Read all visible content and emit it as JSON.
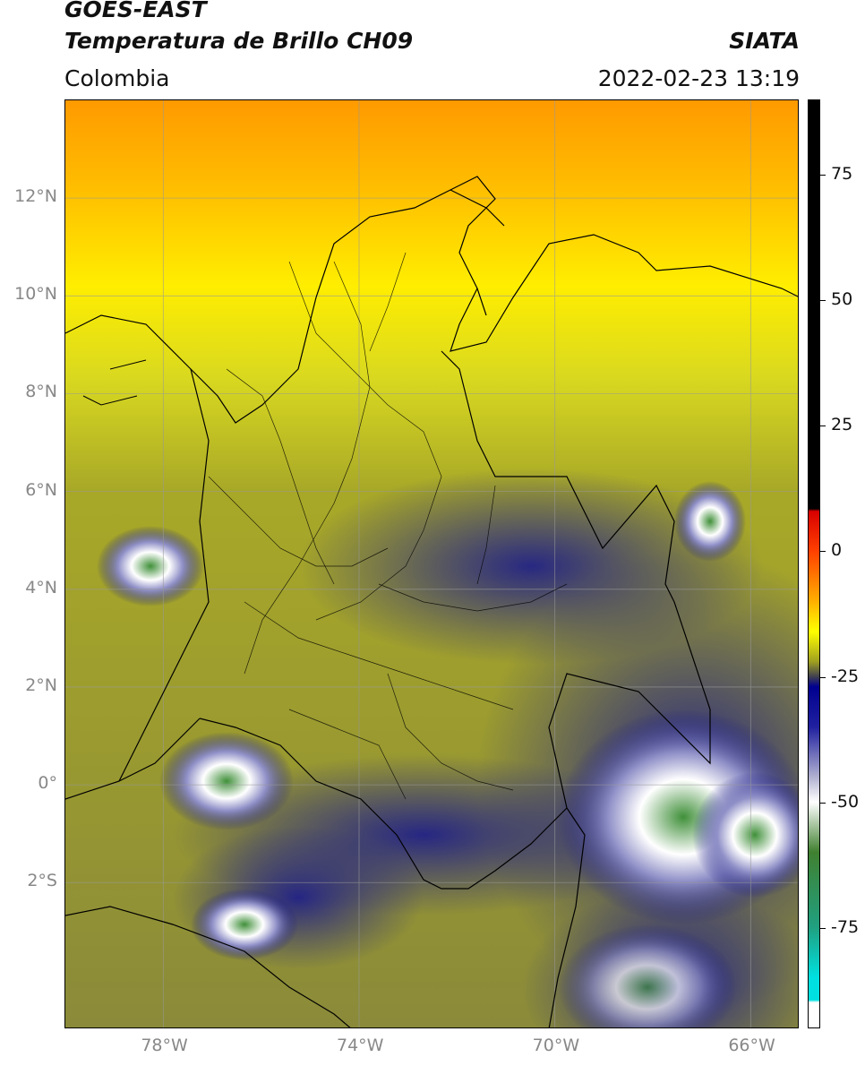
{
  "header": {
    "satellite": "GOES-EAST",
    "product": "Temperatura de Brillo CH09",
    "region": "Colombia",
    "agency": "SIATA",
    "timestamp": "2022-02-23 13:19"
  },
  "map": {
    "lon_range": [
      -80,
      -65
    ],
    "lat_range": [
      -5,
      14
    ],
    "lat_ticks": [
      {
        "value": 12,
        "label": "12°N"
      },
      {
        "value": 10,
        "label": "10°N"
      },
      {
        "value": 8,
        "label": "8°N"
      },
      {
        "value": 6,
        "label": "6°N"
      },
      {
        "value": 4,
        "label": "4°N"
      },
      {
        "value": 2,
        "label": "2°N"
      },
      {
        "value": 0,
        "label": "0°"
      },
      {
        "value": -2,
        "label": "2°S"
      }
    ],
    "lon_ticks": [
      {
        "value": -78,
        "label": "78°W"
      },
      {
        "value": -74,
        "label": "74°W"
      },
      {
        "value": -70,
        "label": "70°W"
      },
      {
        "value": -66,
        "label": "66°W"
      }
    ],
    "gridlines": true
  },
  "colorbar": {
    "range": [
      -95,
      90
    ],
    "ticks": [
      {
        "value": 75,
        "label": "75"
      },
      {
        "value": 50,
        "label": "50"
      },
      {
        "value": 25,
        "label": "25"
      },
      {
        "value": 0,
        "label": "0"
      },
      {
        "value": -25,
        "label": "-25"
      },
      {
        "value": -50,
        "label": "-50"
      },
      {
        "value": -75,
        "label": "-75"
      }
    ],
    "stops": [
      {
        "value": 90,
        "color": "#000000"
      },
      {
        "value": 8.5,
        "color": "#000000"
      },
      {
        "value": 8,
        "color": "#d80000"
      },
      {
        "value": 0,
        "color": "#ff4000"
      },
      {
        "value": -10,
        "color": "#ffb000"
      },
      {
        "value": -16,
        "color": "#ffff00"
      },
      {
        "value": -22,
        "color": "#a0a020"
      },
      {
        "value": -25,
        "color": "#404050"
      },
      {
        "value": -27,
        "color": "#000090"
      },
      {
        "value": -35,
        "color": "#2020a0"
      },
      {
        "value": -45,
        "color": "#b0b0d0"
      },
      {
        "value": -50,
        "color": "#ffffff"
      },
      {
        "value": -60,
        "color": "#408030"
      },
      {
        "value": -75,
        "color": "#20a080"
      },
      {
        "value": -85,
        "color": "#00e0e0"
      },
      {
        "value": -89.5,
        "color": "#00e0e0"
      },
      {
        "value": -90,
        "color": "#ffffff"
      },
      {
        "value": -95,
        "color": "#ffffff"
      }
    ]
  }
}
